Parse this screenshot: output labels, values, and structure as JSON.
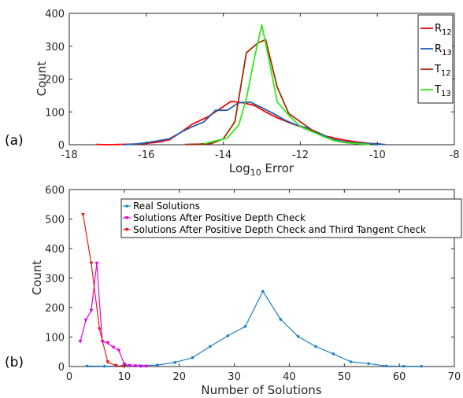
{
  "chart_data": [
    {
      "type": "line",
      "panel_label": "(a)",
      "xlabel": "Log",
      "xlabel_sub": "10",
      "xlabel_rest": " Error",
      "ylabel": "Count",
      "xlim": [
        -18,
        -8
      ],
      "ylim": [
        0,
        400
      ],
      "xticks": [
        -18,
        -16,
        -14,
        -12,
        -10,
        -8
      ],
      "yticks": [
        0,
        100,
        200,
        300,
        400
      ],
      "legend_position": "top-right",
      "series": [
        {
          "label_main": "R",
          "label_sub": "12",
          "color": "#ff0000",
          "x": [
            -17.3,
            -17.0,
            -16.7,
            -16.3,
            -16.0,
            -15.7,
            -15.4,
            -15.1,
            -14.8,
            -14.4,
            -14.1,
            -13.8,
            -13.5,
            -13.2,
            -12.9,
            -12.6,
            -12.3,
            -12.0,
            -11.7,
            -11.4,
            -11.1,
            -10.8,
            -10.5,
            -10.2,
            -9.9
          ],
          "y": [
            1,
            0,
            1,
            2,
            4,
            8,
            15,
            38,
            63,
            85,
            108,
            132,
            128,
            120,
            100,
            82,
            68,
            55,
            40,
            28,
            20,
            13,
            8,
            4,
            2
          ]
        },
        {
          "label_main": "R",
          "label_sub": "13",
          "color": "#1f5fb5",
          "x": [
            -16.6,
            -16.3,
            -16.0,
            -15.7,
            -15.4,
            -15.1,
            -14.8,
            -14.5,
            -14.2,
            -13.9,
            -13.6,
            -13.3,
            -13.0,
            -12.7,
            -12.4,
            -12.1,
            -11.8,
            -11.5,
            -11.2,
            -10.9,
            -10.6,
            -10.3,
            -10.0,
            -9.8
          ],
          "y": [
            0,
            2,
            6,
            12,
            18,
            38,
            55,
            70,
            105,
            105,
            128,
            130,
            113,
            95,
            75,
            60,
            50,
            35,
            18,
            10,
            6,
            4,
            2,
            1
          ]
        },
        {
          "label_main": "T",
          "label_sub": "12",
          "color": "#a52a00",
          "x": [
            -15.0,
            -14.6,
            -14.3,
            -14.0,
            -13.7,
            -13.4,
            -13.1,
            -12.9,
            -12.6,
            -12.3,
            -12.0,
            -11.7,
            -11.4,
            -11.1,
            -10.8,
            -10.5,
            -10.2
          ],
          "y": [
            1,
            2,
            4,
            18,
            70,
            280,
            310,
            320,
            175,
            95,
            70,
            45,
            25,
            12,
            6,
            3,
            1
          ]
        },
        {
          "label_main": "T",
          "label_sub": "13",
          "color": "#33e81a",
          "x": [
            -14.5,
            -14.2,
            -13.9,
            -13.6,
            -13.4,
            -13.2,
            -13.0,
            -12.8,
            -12.6,
            -12.3,
            -12.0,
            -11.7,
            -11.4,
            -11.1,
            -10.8,
            -10.5,
            -10.2
          ],
          "y": [
            3,
            12,
            20,
            60,
            140,
            260,
            365,
            250,
            130,
            90,
            55,
            40,
            25,
            12,
            6,
            3,
            1
          ]
        }
      ]
    },
    {
      "type": "line",
      "panel_label": "(b)",
      "xlabel": "Number of Solutions",
      "ylabel": "Count",
      "xlim": [
        0,
        70
      ],
      "ylim": [
        0,
        600
      ],
      "xticks": [
        0,
        10,
        20,
        30,
        40,
        50,
        60,
        70
      ],
      "yticks": [
        0,
        100,
        200,
        300,
        400,
        500,
        600
      ],
      "legend_position": "top-center",
      "series": [
        {
          "name": "Real Solutions",
          "color": "#1a7ec4",
          "marker": "dot",
          "x": [
            3.2,
            6.4,
            9.6,
            12.8,
            16.0,
            19.2,
            22.4,
            25.6,
            28.8,
            32.0,
            35.2,
            38.4,
            41.6,
            44.8,
            48.0,
            51.2,
            54.4,
            57.6,
            60.8,
            64.0
          ],
          "y": [
            2,
            1,
            2,
            3,
            5,
            14,
            30,
            68,
            104,
            136,
            255,
            160,
            102,
            68,
            43,
            16,
            10,
            2,
            1,
            1
          ]
        },
        {
          "name": "Solutions After Positive Depth Check",
          "color": "#e600e6",
          "marker": "triangle-down",
          "x": [
            2,
            3,
            4,
            5,
            6,
            7,
            8,
            9,
            10,
            11,
            12,
            13,
            14
          ],
          "y": [
            85,
            157,
            190,
            350,
            85,
            80,
            65,
            55,
            8,
            3,
            2,
            1,
            1
          ]
        },
        {
          "name": "Solutions After Positive Depth Check and Third Tangent Check",
          "color": "#e61a1a",
          "marker": "triangle-down",
          "x": [
            2.5,
            4,
            5.5,
            7,
            8.5,
            10
          ],
          "y": [
            515,
            350,
            127,
            15,
            3,
            0
          ]
        }
      ]
    }
  ]
}
